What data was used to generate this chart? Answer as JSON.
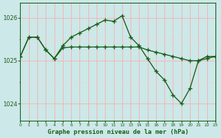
{
  "title": "Graphe pression niveau de la mer (hPa)",
  "background_color": "#cce8e8",
  "grid_color_major": "#ffaaaa",
  "grid_color_minor": "#ffcccc",
  "line_color": "#1a5c1a",
  "xlim": [
    0,
    23
  ],
  "ylim": [
    1023.6,
    1026.35
  ],
  "yticks": [
    1024,
    1025,
    1026
  ],
  "xticks": [
    0,
    1,
    2,
    3,
    4,
    5,
    6,
    7,
    8,
    9,
    10,
    11,
    12,
    13,
    14,
    15,
    16,
    17,
    18,
    19,
    20,
    21,
    22,
    23
  ],
  "series1_x": [
    0,
    1,
    2,
    3,
    4,
    5,
    6,
    7,
    8,
    9,
    10,
    11,
    12,
    13,
    14,
    15,
    16,
    17,
    18,
    19,
    20,
    21,
    22,
    23
  ],
  "series1_y": [
    1025.1,
    1025.55,
    1025.55,
    1025.25,
    1025.05,
    1025.35,
    1025.55,
    1025.65,
    1025.75,
    1025.85,
    1025.95,
    1025.92,
    1026.05,
    1025.55,
    1025.35,
    1025.05,
    1024.75,
    1024.55,
    1024.2,
    1024.0,
    1024.35,
    1025.0,
    1025.1,
    1025.1
  ],
  "series2_x": [
    0,
    1,
    2,
    3,
    4,
    5,
    6,
    7,
    8,
    9,
    10,
    11,
    12,
    13,
    14,
    15,
    16,
    17,
    18,
    19,
    20,
    21,
    22,
    23
  ],
  "series2_y": [
    1025.1,
    1025.55,
    1025.55,
    1025.25,
    1025.05,
    1025.3,
    1025.32,
    1025.32,
    1025.32,
    1025.32,
    1025.32,
    1025.32,
    1025.32,
    1025.32,
    1025.32,
    1025.25,
    1025.2,
    1025.15,
    1025.1,
    1025.05,
    1025.0,
    1025.0,
    1025.05,
    1025.1
  ]
}
